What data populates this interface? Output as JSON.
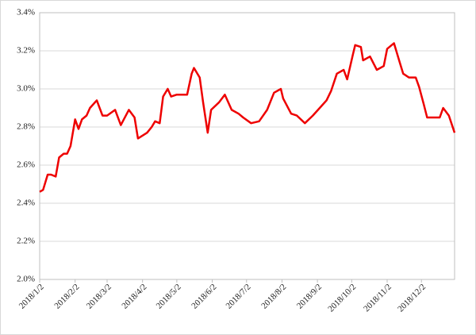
{
  "chart_data": {
    "type": "line",
    "x": [
      "2018/1/2",
      "2018/1/5",
      "2018/1/9",
      "2018/1/12",
      "2018/1/16",
      "2018/1/19",
      "2018/1/23",
      "2018/1/26",
      "2018/1/29",
      "2018/2/2",
      "2018/2/5",
      "2018/2/8",
      "2018/2/12",
      "2018/2/15",
      "2018/2/21",
      "2018/2/26",
      "2018/3/2",
      "2018/3/9",
      "2018/3/14",
      "2018/3/21",
      "2018/3/26",
      "2018/3/29",
      "2018/4/6",
      "2018/4/10",
      "2018/4/13",
      "2018/4/17",
      "2018/4/20",
      "2018/4/24",
      "2018/4/27",
      "2018/5/2",
      "2018/5/8",
      "2018/5/11",
      "2018/5/15",
      "2018/5/17",
      "2018/5/22",
      "2018/5/25",
      "2018/5/29",
      "2018/6/1",
      "2018/6/8",
      "2018/6/13",
      "2018/6/19",
      "2018/6/25",
      "2018/6/29",
      "2018/7/6",
      "2018/7/13",
      "2018/7/20",
      "2018/7/26",
      "2018/8/1",
      "2018/8/3",
      "2018/8/10",
      "2018/8/15",
      "2018/8/22",
      "2018/8/29",
      "2018/9/4",
      "2018/9/10",
      "2018/9/14",
      "2018/9/19",
      "2018/9/25",
      "2018/9/28",
      "2018/10/3",
      "2018/10/5",
      "2018/10/10",
      "2018/10/12",
      "2018/10/18",
      "2018/10/24",
      "2018/10/30",
      "2018/11/2",
      "2018/11/8",
      "2018/11/13",
      "2018/11/16",
      "2018/11/21",
      "2018/11/27",
      "2018/11/30",
      "2018/12/4",
      "2018/12/7",
      "2018/12/12",
      "2018/12/18",
      "2018/12/21",
      "2018/12/26",
      "2018/12/31"
    ],
    "series": [
      {
        "color": "#ee0000",
        "values": [
          2.46,
          2.47,
          2.55,
          2.55,
          2.54,
          2.64,
          2.66,
          2.66,
          2.7,
          2.84,
          2.79,
          2.84,
          2.86,
          2.9,
          2.94,
          2.86,
          2.86,
          2.89,
          2.81,
          2.89,
          2.85,
          2.74,
          2.77,
          2.8,
          2.83,
          2.82,
          2.96,
          3.0,
          2.96,
          2.97,
          2.97,
          2.97,
          3.08,
          3.11,
          3.06,
          2.93,
          2.77,
          2.89,
          2.93,
          2.97,
          2.89,
          2.87,
          2.85,
          2.82,
          2.83,
          2.89,
          2.98,
          3.0,
          2.95,
          2.87,
          2.86,
          2.82,
          2.86,
          2.9,
          2.94,
          2.99,
          3.08,
          3.1,
          3.05,
          3.18,
          3.23,
          3.22,
          3.15,
          3.17,
          3.1,
          3.12,
          3.21,
          3.24,
          3.14,
          3.08,
          3.06,
          3.06,
          3.01,
          2.92,
          2.85,
          2.85,
          2.85,
          2.9,
          2.86,
          2.77
        ]
      }
    ],
    "xticks": [
      "2018/1/2",
      "2018/2/2",
      "2018/3/2",
      "2018/4/2",
      "2018/5/2",
      "2018/6/2",
      "2018/7/2",
      "2018/8/2",
      "2018/9/2",
      "2018/10/2",
      "2018/11/2",
      "2018/12/2"
    ],
    "xlim": [
      "2018/1/2",
      "2018/12/31"
    ],
    "ylim": [
      2.0,
      3.4
    ],
    "yticks": [
      {
        "value": 2.0,
        "label": "2.0%"
      },
      {
        "value": 2.2,
        "label": "2.2%"
      },
      {
        "value": 2.4,
        "label": "2.4%"
      },
      {
        "value": 2.6,
        "label": "2.6%"
      },
      {
        "value": 2.8,
        "label": "2.8%"
      },
      {
        "value": 3.0,
        "label": "3.0%"
      },
      {
        "value": 3.2,
        "label": "3.2%"
      },
      {
        "value": 3.4,
        "label": "3.4%"
      }
    ],
    "grid": true
  }
}
